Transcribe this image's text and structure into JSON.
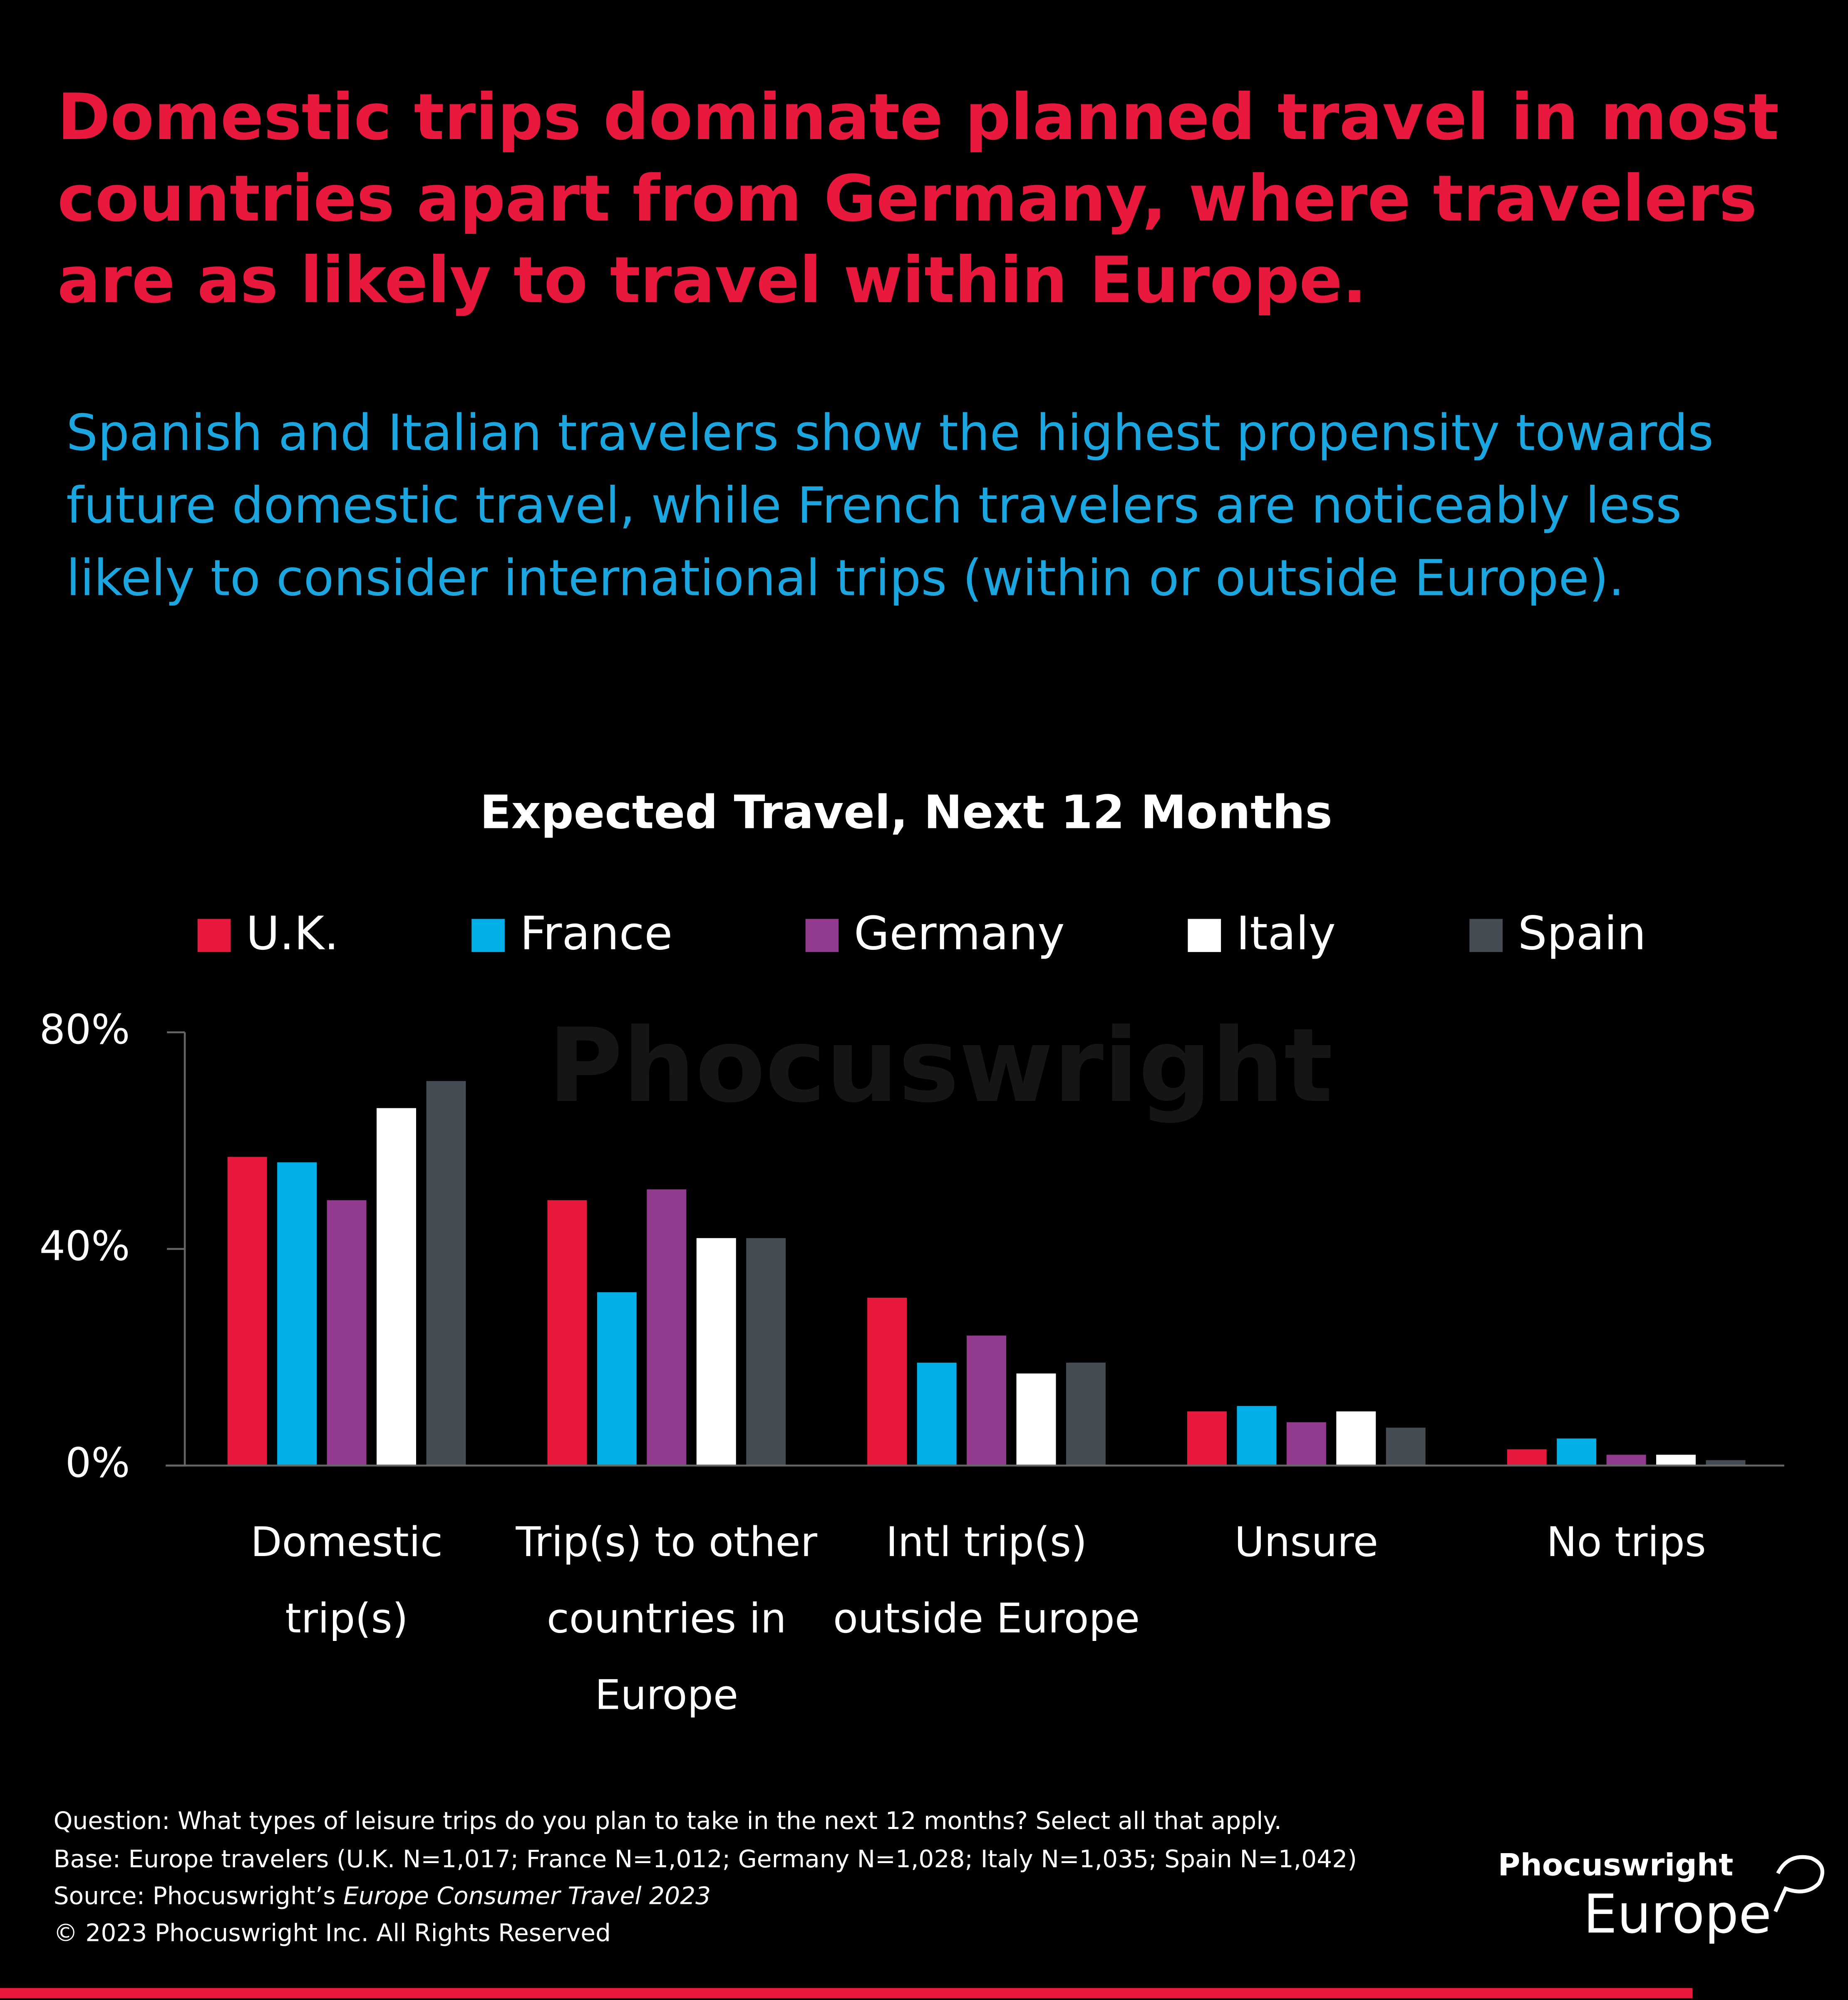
{
  "header": {
    "title": "Domestic trips dominate planned travel in most countries apart from Germany, where travelers are as likely to travel within Europe.",
    "subtitle": "Spanish and Italian travelers show the highest propensity towards future domestic travel, while French travelers are noticeably less likely to consider international trips (within or outside Europe)."
  },
  "chart_data": {
    "type": "bar",
    "title": "Expected Travel, Next 12 Months",
    "watermark": "Phocuswright",
    "categories": [
      "Domestic trip(s)",
      "Trip(s) to other countries in Europe",
      "Intl trip(s) outside Europe",
      "Unsure",
      "No trips"
    ],
    "series": [
      {
        "name": "U.K.",
        "color": "#e8193c",
        "values": [
          57,
          49,
          31,
          10,
          3
        ]
      },
      {
        "name": "France",
        "color": "#00aee8",
        "values": [
          56,
          32,
          19,
          11,
          5
        ]
      },
      {
        "name": "Germany",
        "color": "#923b8e",
        "values": [
          49,
          51,
          24,
          8,
          2
        ]
      },
      {
        "name": "Italy",
        "color": "#ffffff",
        "values": [
          66,
          42,
          17,
          10,
          2
        ]
      },
      {
        "name": "Spain",
        "color": "#454c54",
        "values": [
          71,
          42,
          19,
          7,
          1
        ]
      }
    ],
    "ylim": [
      0,
      80
    ],
    "yticks": [
      {
        "value": 0,
        "label": "0%"
      },
      {
        "value": 40,
        "label": "40%"
      },
      {
        "value": 80,
        "label": "80%"
      }
    ],
    "grid": false,
    "legend": "top"
  },
  "footer": {
    "question": "Question: What types of leisure trips do you plan to take in the next 12 months? Select all that apply.",
    "base": "Base: Europe travelers (U.K. N=1,017; France N=1,012; Germany N=1,028; Italy N=1,035; Spain N=1,042)",
    "source_prefix": "Source: Phocuswright’s ",
    "source_title": "Europe Consumer Travel 2023",
    "copyright": "© 2023 Phocuswright Inc. All Rights Reserved",
    "logo_top": "Phocuswright",
    "logo_bottom": "Europe"
  }
}
